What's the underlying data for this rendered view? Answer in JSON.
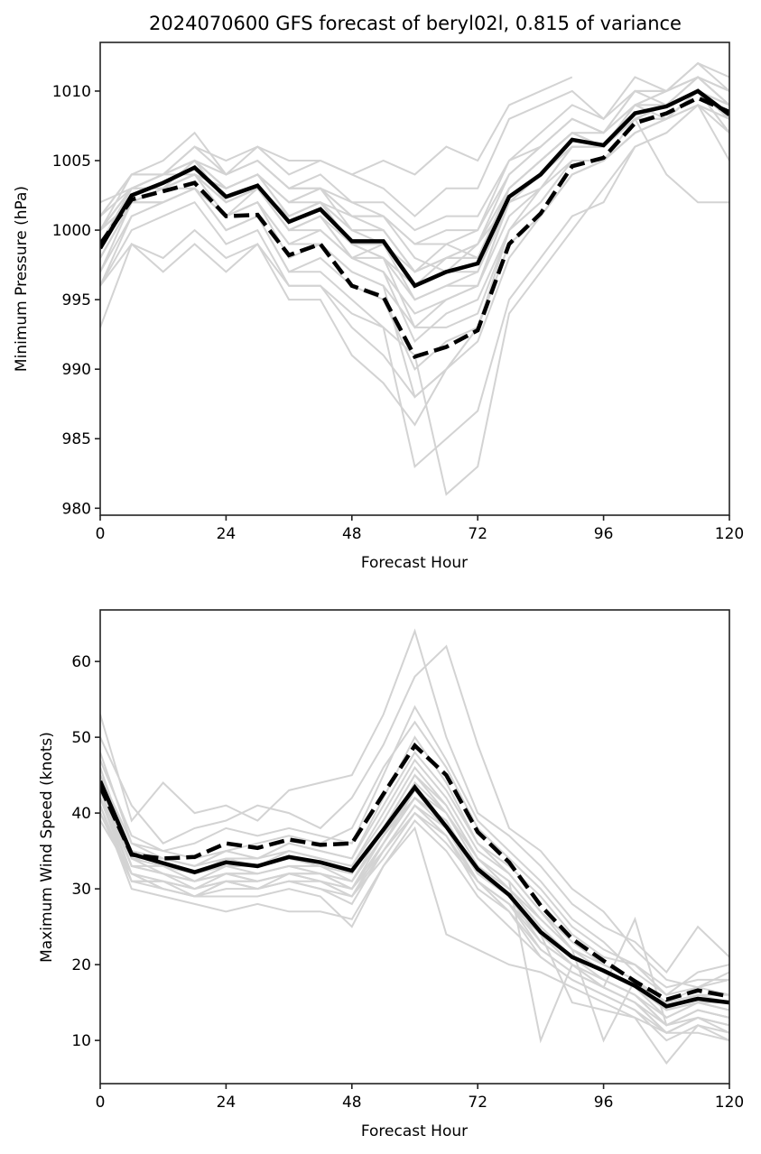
{
  "chart_data": [
    {
      "type": "line",
      "title": "2024070600 GFS forecast of beryl02l, 0.815 of variance",
      "xlabel": "Forecast Hour",
      "ylabel": "Minimum Pressure (hPa)",
      "xlim": [
        0,
        120
      ],
      "ylim": [
        979.5,
        1013.5
      ],
      "xticks": [
        0,
        24,
        48,
        72,
        96,
        120
      ],
      "xtick_labels": [
        "0",
        "24",
        "48",
        "72",
        "96",
        "120"
      ],
      "yticks": [
        980,
        985,
        990,
        995,
        1000,
        1005,
        1010
      ],
      "ytick_labels": [
        "980",
        "985",
        "990",
        "995",
        "1000",
        "1005",
        "1010"
      ],
      "grid": false,
      "x": [
        0,
        6,
        12,
        18,
        24,
        30,
        36,
        42,
        48,
        54,
        60,
        66,
        72,
        78,
        84,
        90,
        96,
        102,
        108,
        114,
        120
      ],
      "series": [
        {
          "name": "solid",
          "style": "solid",
          "color": "#000000",
          "values": [
            998.7,
            1002.5,
            1003.4,
            1004.5,
            1002.4,
            1003.2,
            1000.6,
            1001.5,
            999.2,
            999.2,
            996.0,
            997.0,
            997.6,
            1002.4,
            1004.0,
            1006.5,
            1006.1,
            1008.4,
            1008.9,
            1010.0,
            1008.3
          ]
        },
        {
          "name": "dashed",
          "style": "dashed",
          "color": "#000000",
          "values": [
            999.0,
            1002.2,
            1002.8,
            1003.4,
            1001.0,
            1001.1,
            998.2,
            999.0,
            996.0,
            995.2,
            990.9,
            991.6,
            992.8,
            999.0,
            1001.2,
            1004.6,
            1005.2,
            1007.7,
            1008.4,
            1009.5,
            1008.5
          ]
        }
      ],
      "members_color": "#d3d3d3",
      "members": [
        [
          1001,
          1004,
          1005,
          1007,
          1004,
          1006,
          1004,
          1005,
          1004,
          1003,
          1001,
          1003,
          1003,
          1008,
          1009,
          1010,
          1008,
          1011,
          1010,
          1012,
          1010
        ],
        [
          1000,
          1003,
          1004,
          1006,
          1005,
          1006,
          1005,
          1005,
          1004,
          1005,
          1004,
          1006,
          1005,
          1009,
          1010,
          1011,
          null,
          null,
          null,
          null,
          null
        ],
        [
          999,
          1003,
          1004,
          1005,
          1003,
          1004,
          1002,
          1003,
          1001,
          1000,
          997,
          998,
          999,
          1004,
          1006,
          1008,
          1007,
          1009,
          1010,
          1011,
          1009
        ],
        [
          1002,
          1003,
          1003,
          1004,
          1002,
          1003,
          1001,
          1002,
          1000,
          999,
          995,
          996,
          997,
          1003,
          1005,
          1007,
          1006,
          1008,
          1009,
          1011,
          1010
        ],
        [
          998,
          1002,
          1003,
          1004,
          1001,
          1003,
          1000,
          1001,
          999,
          998,
          993,
          995,
          996,
          1002,
          1004,
          1006,
          1006,
          1008,
          1009,
          1010,
          1008
        ],
        [
          1000,
          1002,
          1003,
          1004,
          1003,
          1004,
          1001,
          1002,
          1000,
          1000,
          997,
          998,
          998,
          1003,
          1005,
          1007,
          1006,
          1009,
          1008,
          1010,
          1009
        ],
        [
          997,
          1002,
          1002,
          1003,
          1001,
          1002,
          999,
          1000,
          998,
          997,
          994,
          995,
          996,
          1001,
          1003,
          1005,
          1005,
          1007,
          1008,
          1010,
          1007
        ],
        [
          1001,
          1003,
          1004,
          1005,
          1003,
          1004,
          1002,
          1002,
          1001,
          1001,
          999,
          999,
          1000,
          1004,
          1006,
          1008,
          1007,
          1010,
          1009,
          1011,
          1009
        ],
        [
          996,
          1001,
          1002,
          1003,
          1000,
          1001,
          997,
          998,
          996,
          995,
          990,
          992,
          993,
          999,
          1001,
          1004,
          1005,
          1007,
          1008,
          1010,
          1008
        ],
        [
          999,
          1002,
          1003,
          1004,
          1002,
          1003,
          1000,
          1001,
          998,
          997,
          992,
          994,
          995,
          1000,
          1002,
          1005,
          1005,
          1008,
          1009,
          1010,
          1008
        ],
        [
          1000,
          1003,
          1004,
          1005,
          1004,
          1005,
          1003,
          1003,
          1001,
          1001,
          998,
          997,
          999,
          1003,
          1005,
          1007,
          1006,
          1009,
          1010,
          1011,
          1009
        ],
        [
          998,
          1002,
          1003,
          1003,
          1001,
          1002,
          999,
          999,
          997,
          996,
          988,
          990,
          992,
          998,
          1001,
          1004,
          1005,
          1007,
          1008,
          1009,
          1008
        ],
        [
          993,
          999,
          998,
          1000,
          998,
          999,
          995,
          995,
          991,
          989,
          986,
          990,
          993,
          1000,
          1003,
          1006,
          1006,
          1008,
          1008,
          1009,
          1005
        ],
        [
          996,
          1000,
          1001,
          1002,
          999,
          1000,
          996,
          996,
          994,
          993,
          983,
          985,
          987,
          995,
          998,
          1001,
          1002,
          1006,
          1007,
          1009,
          1008
        ],
        [
          999,
          1002,
          1002,
          1003,
          1000,
          1001,
          997,
          997,
          995,
          993,
          991,
          981,
          983,
          994,
          997,
          1000,
          1003,
          1006,
          1007,
          1009,
          1007
        ],
        [
          996,
          999,
          997,
          999,
          997,
          999,
          996,
          996,
          993,
          991,
          988,
          990,
          993,
          999,
          1001,
          1004,
          1005,
          1008,
          1004,
          1002,
          1002
        ],
        [
          1001,
          1004,
          1004,
          1005,
          1004,
          1005,
          1003,
          1004,
          1002,
          1002,
          1000,
          1001,
          1001,
          1005,
          1007,
          1009,
          1008,
          1010,
          1010,
          1011,
          1010
        ],
        [
          999,
          1003,
          1003,
          1005,
          1003,
          1004,
          1001,
          1002,
          999,
          999,
          996,
          997,
          997,
          1002,
          1004,
          1006,
          1006,
          1008,
          1009,
          1010,
          1008
        ],
        [
          1000,
          1003,
          1004,
          1004,
          1003,
          1004,
          1002,
          1003,
          1000,
          1000,
          997,
          999,
          998,
          1003,
          1005,
          1007,
          1007,
          1009,
          1009,
          1010,
          1009
        ],
        [
          998,
          1002,
          1003,
          1004,
          1002,
          1003,
          1000,
          1000,
          998,
          998,
          995,
          996,
          996,
          1002,
          1003,
          1006,
          1006,
          1008,
          1009,
          1010,
          1008
        ],
        [
          1000,
          1004,
          1004,
          1006,
          1004,
          1005,
          1003,
          1003,
          1002,
          1001,
          999,
          1000,
          1000,
          1005,
          1006,
          1008,
          1007,
          1010,
          1010,
          1012,
          1011
        ],
        [
          997,
          1001,
          1002,
          1003,
          1001,
          1002,
          998,
          999,
          997,
          996,
          993,
          993,
          994,
          1000,
          1002,
          1005,
          1005,
          1007,
          1008,
          1010,
          1007
        ],
        [
          999,
          1003,
          1004,
          1005,
          1002,
          1003,
          1001,
          1002,
          999,
          998,
          996,
          998,
          998,
          1003,
          1005,
          1007,
          1006,
          1009,
          1009,
          1011,
          1009
        ],
        [
          1000,
          1002,
          1003,
          1004,
          1002,
          1003,
          1000,
          1001,
          998,
          999,
          997,
          998,
          999,
          1002,
          1004,
          1006,
          1006,
          1008,
          1008,
          1010,
          1008
        ]
      ]
    },
    {
      "type": "line",
      "title": "",
      "xlabel": "Forecast Hour",
      "ylabel": "Maximum Wind Speed (knots)",
      "xlim": [
        0,
        120
      ],
      "ylim": [
        4.3,
        66.8
      ],
      "xticks": [
        0,
        24,
        48,
        72,
        96,
        120
      ],
      "xtick_labels": [
        "0",
        "24",
        "48",
        "72",
        "96",
        "120"
      ],
      "yticks": [
        10,
        20,
        30,
        40,
        50,
        60
      ],
      "ytick_labels": [
        "10",
        "20",
        "30",
        "40",
        "50",
        "60"
      ],
      "grid": false,
      "x": [
        0,
        6,
        12,
        18,
        24,
        30,
        36,
        42,
        48,
        54,
        60,
        66,
        72,
        78,
        84,
        90,
        96,
        102,
        108,
        114,
        120
      ],
      "series": [
        {
          "name": "solid",
          "style": "solid",
          "color": "#000000",
          "values": [
            44.2,
            34.6,
            33.4,
            32.2,
            33.5,
            33.0,
            34.2,
            33.5,
            32.4,
            37.8,
            43.4,
            38.2,
            32.6,
            29.2,
            24.3,
            21.0,
            19.2,
            17.2,
            14.5,
            15.5,
            15.0
          ]
        },
        {
          "name": "dashed",
          "style": "dashed",
          "color": "#000000",
          "values": [
            43.5,
            34.5,
            34.0,
            34.2,
            36.0,
            35.4,
            36.5,
            35.8,
            36.0,
            42.5,
            48.9,
            45.0,
            37.5,
            33.5,
            27.8,
            23.4,
            20.5,
            17.8,
            15.4,
            16.6,
            15.8
          ]
        }
      ],
      "members_color": "#d3d3d3",
      "members": [
        [
          53,
          39,
          44,
          40,
          41,
          39,
          43,
          44,
          45,
          53,
          64,
          50,
          40,
          37,
          33,
          28,
          25,
          23,
          19,
          25,
          21
        ],
        [
          50,
          41,
          36,
          38,
          39,
          41,
          40,
          38,
          42,
          49,
          58,
          62,
          49,
          38,
          35,
          30,
          27,
          22,
          18,
          17,
          19
        ],
        [
          48,
          36,
          35,
          36,
          38,
          37,
          38,
          37,
          36,
          45,
          54,
          47,
          39,
          35,
          31,
          26,
          23,
          19,
          16,
          19,
          20
        ],
        [
          46,
          34,
          34,
          33,
          35,
          34,
          36,
          35,
          34,
          42,
          50,
          44,
          36,
          33,
          29,
          24,
          21,
          20,
          17,
          18,
          18
        ],
        [
          45,
          35,
          33,
          32,
          34,
          33,
          35,
          34,
          33,
          40,
          47,
          42,
          35,
          32,
          27,
          22,
          20,
          18,
          15,
          16,
          16
        ],
        [
          44,
          33,
          32,
          31,
          33,
          32,
          33,
          33,
          31,
          38,
          45,
          40,
          33,
          30,
          25,
          21,
          19,
          17,
          13,
          15,
          14
        ],
        [
          43,
          32,
          31,
          30,
          32,
          31,
          32,
          32,
          30,
          36,
          43,
          38,
          31,
          28,
          24,
          20,
          18,
          16,
          12,
          14,
          13
        ],
        [
          42,
          31,
          31,
          29,
          31,
          30,
          31,
          31,
          29,
          35,
          41,
          37,
          30,
          27,
          22,
          19,
          17,
          15,
          11,
          13,
          12
        ],
        [
          41,
          30,
          29,
          28,
          27,
          28,
          27,
          27,
          26,
          33,
          39,
          35,
          29,
          25,
          21,
          18,
          16,
          14,
          10,
          12,
          11
        ],
        [
          40,
          32,
          30,
          29,
          29,
          29,
          30,
          29,
          25,
          33,
          38,
          24,
          22,
          20,
          19,
          17,
          15,
          13,
          11,
          11,
          10
        ],
        [
          47,
          37,
          35,
          34,
          35,
          36,
          37,
          36,
          38,
          46,
          52,
          46,
          38,
          34,
          30,
          25,
          22,
          20,
          16,
          17,
          18
        ],
        [
          44,
          33,
          33,
          31,
          32,
          32,
          33,
          32,
          31,
          37,
          44,
          40,
          34,
          31,
          10,
          20,
          18,
          16,
          12,
          14,
          13
        ],
        [
          42,
          34,
          32,
          31,
          32,
          31,
          32,
          32,
          30,
          37,
          42,
          39,
          32,
          29,
          24,
          15,
          14,
          13,
          7,
          12,
          10
        ],
        [
          45,
          35,
          34,
          33,
          34,
          34,
          35,
          34,
          33,
          39,
          46,
          41,
          34,
          31,
          26,
          22,
          10,
          18,
          14,
          15,
          15
        ],
        [
          43,
          33,
          32,
          30,
          31,
          30,
          32,
          31,
          29,
          36,
          42,
          38,
          32,
          29,
          23,
          20,
          17,
          26,
          12,
          13,
          12
        ],
        [
          39,
          32,
          31,
          30,
          31,
          31,
          32,
          31,
          30,
          35,
          40,
          36,
          31,
          28,
          23,
          20,
          17,
          15,
          12,
          14,
          13
        ],
        [
          46,
          34,
          33,
          32,
          33,
          33,
          34,
          33,
          32,
          38,
          45,
          41,
          34,
          30,
          26,
          22,
          19,
          17,
          14,
          16,
          15
        ],
        [
          41,
          31,
          30,
          29,
          30,
          30,
          31,
          30,
          29,
          34,
          40,
          37,
          31,
          28,
          22,
          19,
          17,
          15,
          11,
          13,
          11
        ],
        [
          45,
          36,
          34,
          33,
          35,
          34,
          36,
          35,
          34,
          41,
          48,
          43,
          36,
          32,
          27,
          23,
          20,
          18,
          15,
          17,
          16
        ],
        [
          42,
          32,
          30,
          29,
          31,
          30,
          31,
          30,
          28,
          35,
          41,
          38,
          31,
          27,
          21,
          18,
          16,
          14,
          11,
          13,
          12
        ],
        [
          44,
          33,
          32,
          31,
          32,
          32,
          33,
          32,
          31,
          37,
          43,
          40,
          33,
          30,
          25,
          21,
          18,
          16,
          13,
          15,
          14
        ],
        [
          40,
          31,
          31,
          30,
          31,
          31,
          32,
          31,
          30,
          36,
          42,
          39,
          32,
          29,
          24,
          20,
          18,
          16,
          12,
          14,
          13
        ]
      ]
    }
  ]
}
